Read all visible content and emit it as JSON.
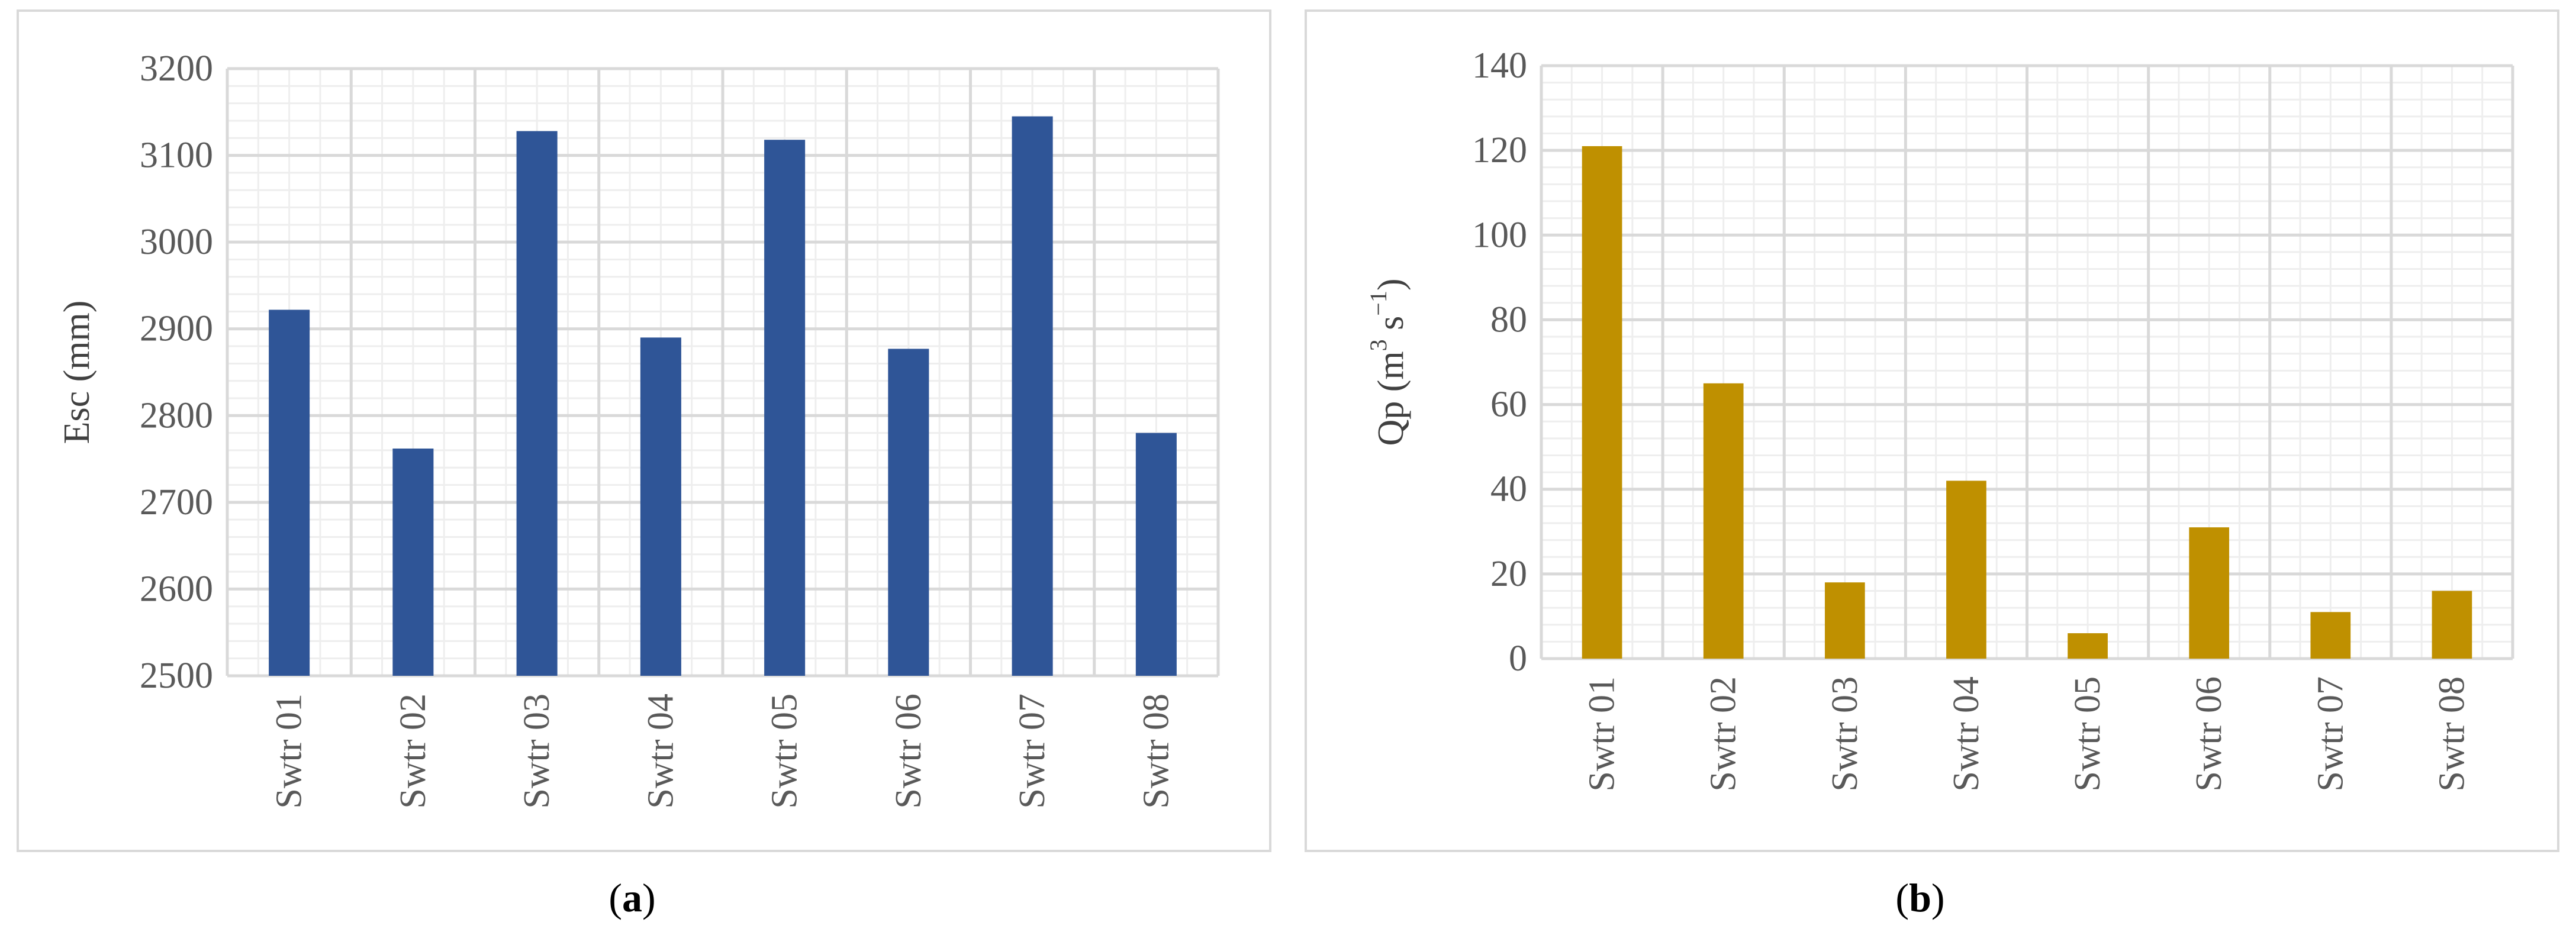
{
  "chart_data": [
    {
      "type": "bar",
      "panel_label": "a",
      "categories": [
        "Swtr 01",
        "Swtr 02",
        "Swtr 03",
        "Swtr 04",
        "Swtr 05",
        "Swtr 06",
        "Swtr 07",
        "Swtr 08"
      ],
      "values": [
        2922,
        2762,
        3128,
        2890,
        3118,
        2877,
        3145,
        2780
      ],
      "ylabel": "Esc (mm)",
      "ylim": [
        2500,
        3200
      ],
      "yticks": [
        "2500",
        "2600",
        "2700",
        "2800",
        "2900",
        "3000",
        "3100",
        "3200"
      ],
      "bar_color": "#2f5597",
      "grid": true,
      "legend": "none"
    },
    {
      "type": "bar",
      "panel_label": "b",
      "categories": [
        "Swtr 01",
        "Swtr 02",
        "Swtr 03",
        "Swtr 04",
        "Swtr 05",
        "Swtr 06",
        "Swtr 07",
        "Swtr 08"
      ],
      "values": [
        121,
        65,
        18,
        42,
        6,
        31,
        11,
        16
      ],
      "ylabel_text": "Qp (m",
      "ylabel_sup1": "3",
      "ylabel_mid": " s",
      "ylabel_sup2": "−1",
      "ylabel_end": ")",
      "ylim": [
        0,
        140
      ],
      "yticks": [
        "0",
        "20",
        "40",
        "60",
        "80",
        "100",
        "120",
        "140"
      ],
      "bar_color": "#bf9000",
      "grid": true,
      "legend": "none"
    }
  ],
  "captions": [
    {
      "open": "(",
      "label": "a",
      "close": ")"
    },
    {
      "open": "(",
      "label": "b",
      "close": ")"
    }
  ]
}
